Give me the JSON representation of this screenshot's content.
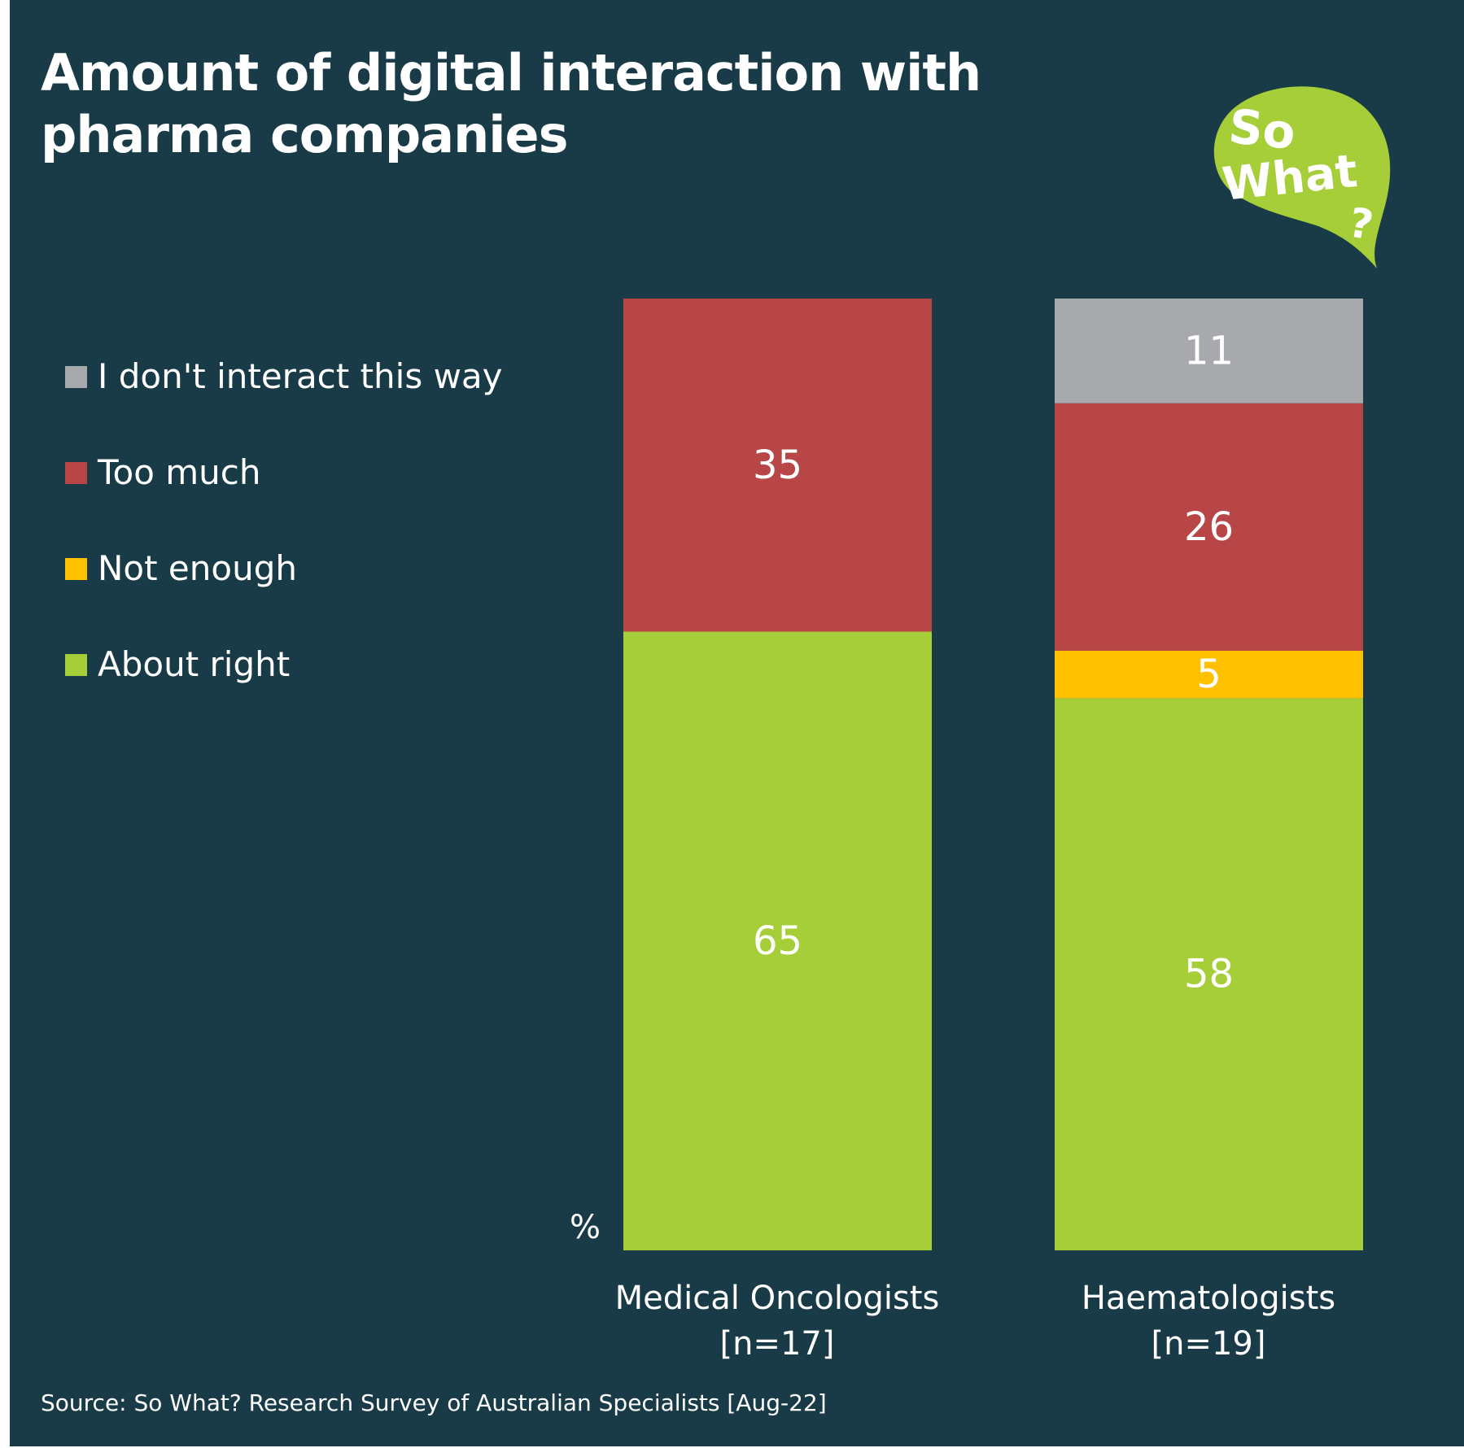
{
  "title": "Amount of digital interaction with pharma companies",
  "logo": {
    "line1": "So",
    "line2": "What",
    "mark": "?",
    "color": "#a6ce39"
  },
  "source": "Source: So What? Research Survey of Australian Specialists [Aug-22]",
  "chart_data": {
    "type": "bar",
    "stacked": true,
    "title": "Amount of digital interaction with pharma companies",
    "unit_label": "%",
    "ylim": [
      0,
      100
    ],
    "grid": false,
    "legend_position": "left",
    "categories": [
      "Medical Oncologists",
      "Haematologists"
    ],
    "category_sublabels": [
      "[n=17]",
      "[n=19]"
    ],
    "series": [
      {
        "name": "About right",
        "color": "#a6ce39",
        "values": [
          65,
          58
        ]
      },
      {
        "name": "Not enough",
        "color": "#ffc000",
        "values": [
          0,
          5
        ]
      },
      {
        "name": "Too much",
        "color": "#b94646",
        "values": [
          35,
          26
        ]
      },
      {
        "name": "I don't interact this way",
        "color": "#a7a9ac",
        "values": [
          0,
          11
        ]
      }
    ],
    "legend_order": [
      "I don't interact this way",
      "Too much",
      "Not enough",
      "About right"
    ]
  },
  "background_color": "#183b47"
}
